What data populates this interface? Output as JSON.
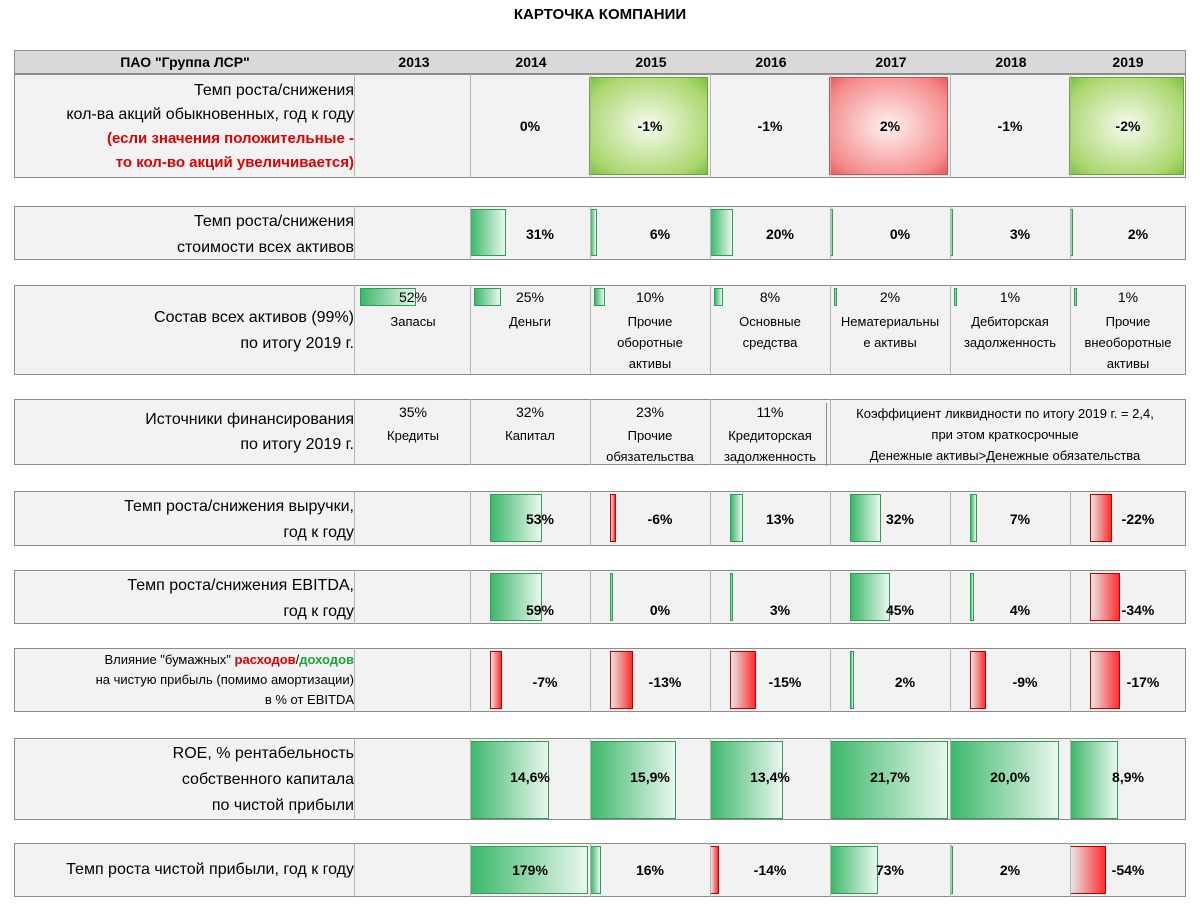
{
  "title": "КАРТОЧКА КОМПАНИИ",
  "header": {
    "company": "ПАО \"Группа ЛСР\"",
    "years": [
      "2013",
      "2014",
      "2015",
      "2016",
      "2017",
      "2018",
      "2019"
    ]
  },
  "shares": {
    "label_lines": [
      "Темп роста/снижения",
      "кол-ва акций обыкновенных,  год к году"
    ],
    "note_lines": [
      "(если значения положительные -",
      "то кол-во акций увеличивается)"
    ],
    "values": [
      "0%",
      "-1%",
      "-1%",
      "2%",
      "-1%",
      "-2%"
    ]
  },
  "assets_growth": {
    "label_lines": [
      "Темп роста/снижения",
      "стоимости всех активов"
    ],
    "values": [
      "31%",
      "6%",
      "20%",
      "0%",
      "3%",
      "2%"
    ],
    "fractions": [
      0.31,
      0.06,
      0.2,
      0.0,
      0.03,
      0.02
    ]
  },
  "assets_structure": {
    "label_lines": [
      "Состав всех активов (99%)",
      "по итогу 2019 г."
    ],
    "items": [
      {
        "pct": "52%",
        "name_lines": [
          "Запасы"
        ],
        "fraction": 0.52
      },
      {
        "pct": "25%",
        "name_lines": [
          "Деньги"
        ],
        "fraction": 0.25
      },
      {
        "pct": "10%",
        "name_lines": [
          "Прочие",
          "оборотные",
          "активы"
        ],
        "fraction": 0.1
      },
      {
        "pct": "8%",
        "name_lines": [
          "Основные",
          "средства"
        ],
        "fraction": 0.08
      },
      {
        "pct": "2%",
        "name_lines": [
          "Нематериальны",
          "е активы"
        ],
        "fraction": 0.02
      },
      {
        "pct": "1%",
        "name_lines": [
          "Дебиторская",
          "задолженность"
        ],
        "fraction": 0.01
      },
      {
        "pct": "1%",
        "name_lines": [
          "Прочие",
          "внеоборотные",
          "активы"
        ],
        "fraction": 0.01
      }
    ]
  },
  "financing": {
    "label_lines": [
      "Источники финансирования",
      "по итогу 2019 г."
    ],
    "items": [
      {
        "pct": "35%",
        "name_lines": [
          "Кредиты"
        ]
      },
      {
        "pct": "32%",
        "name_lines": [
          "Капитал"
        ]
      },
      {
        "pct": "23%",
        "name_lines": [
          "Прочие",
          "обязательства"
        ]
      },
      {
        "pct": "11%",
        "name_lines": [
          "Кредиторская",
          "задолженность"
        ]
      }
    ],
    "liquidity_lines": [
      "Коэффициент ликвидности по итогу 2019 г. = 2,4,",
      "при этом краткосрочные",
      "Денежные активы>Денежные обязательства"
    ]
  },
  "revenue": {
    "label_lines": [
      "Темп роста/снижения выручки,",
      "год к году"
    ],
    "values": [
      "53%",
      "-6%",
      "13%",
      "32%",
      "7%",
      "-22%"
    ],
    "fractions": [
      0.53,
      -0.06,
      0.13,
      0.32,
      0.07,
      -0.22
    ]
  },
  "ebitda": {
    "label_lines": [
      "Темп роста/снижения EBITDA,",
      "год к году"
    ],
    "values": [
      "59%",
      "0%",
      "3%",
      "45%",
      "4%",
      "-34%"
    ],
    "fractions": [
      0.59,
      0.0,
      0.03,
      0.45,
      0.04,
      -0.34
    ]
  },
  "paper": {
    "line1_prefix": "Влияние \"бумажных\" ",
    "line1_exp": "расходов",
    "line1_sep": "/",
    "line1_inc": "доходов",
    "line2": "на чистую прибыль (помимо амортизации)",
    "line3": "в % от EBITDA",
    "values": [
      "-7%",
      "-13%",
      "-15%",
      "2%",
      "-9%",
      "-17%"
    ],
    "fractions": [
      -0.07,
      -0.13,
      -0.15,
      0.02,
      -0.09,
      -0.17
    ]
  },
  "roe": {
    "label_lines": [
      "ROE, % рентабельность",
      "собственного капитала",
      "по чистой прибыли"
    ],
    "values": [
      "14,6%",
      "15,9%",
      "13,4%",
      "21,7%",
      "20,0%",
      "8,9%"
    ],
    "fractions": [
      0.146,
      0.159,
      0.134,
      0.217,
      0.2,
      0.089
    ]
  },
  "net_profit": {
    "label": "Темп роста чистой прибыли, год к году",
    "values": [
      "179%",
      "16%",
      "-14%",
      "73%",
      "2%",
      "-54%"
    ],
    "fractions": [
      1.79,
      0.16,
      -0.14,
      0.73,
      0.02,
      -0.54
    ]
  },
  "colors": {
    "pos": "#3cb86a",
    "neg": "#ff2c2c",
    "note": "#e00000",
    "income": "#1fa53a"
  }
}
